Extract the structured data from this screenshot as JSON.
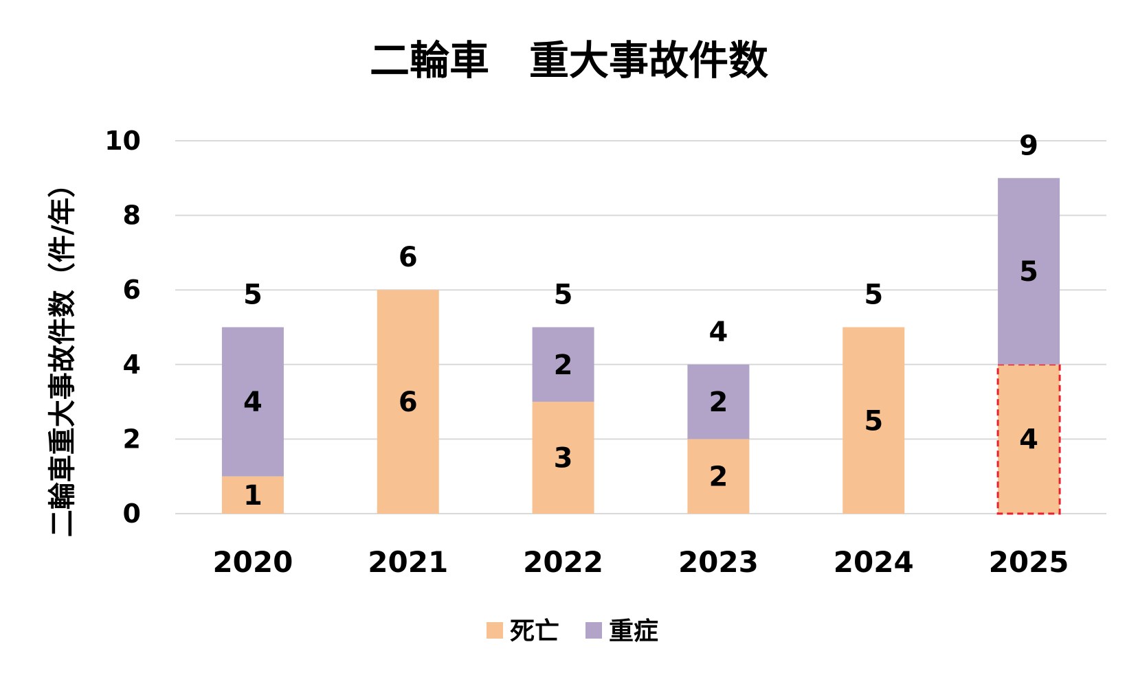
{
  "chart_data": {
    "type": "bar",
    "stacked": true,
    "title": "二輪車　重大事故件数",
    "ylabel": "二輪車重大事故件数（件/年）",
    "xlabel": "",
    "categories": [
      "2020",
      "2021",
      "2022",
      "2023",
      "2024",
      "2025"
    ],
    "ylim": [
      0,
      10
    ],
    "yticks": [
      0,
      2,
      4,
      6,
      8,
      10
    ],
    "grid": true,
    "legend_position": "bottom",
    "series": [
      {
        "name": "死亡",
        "values": [
          1,
          6,
          3,
          2,
          5,
          4
        ],
        "color": "#F8C192"
      },
      {
        "name": "重症",
        "values": [
          4,
          0,
          2,
          2,
          0,
          5
        ],
        "color": "#B2A3C8"
      }
    ],
    "totals": [
      5,
      6,
      5,
      4,
      5,
      9
    ],
    "highlight": {
      "category": "2025",
      "series": "死亡",
      "style": "dashed-outline",
      "color": "#E8202A"
    }
  }
}
